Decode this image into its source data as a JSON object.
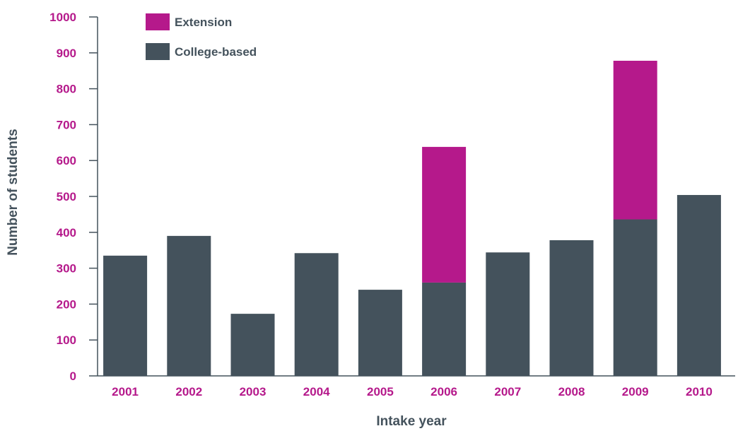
{
  "chart_data": {
    "type": "bar",
    "stacked": true,
    "categories": [
      "2001",
      "2002",
      "2003",
      "2004",
      "2005",
      "2006",
      "2007",
      "2008",
      "2009",
      "2010"
    ],
    "series": [
      {
        "name": "College-based",
        "values": [
          335,
          390,
          173,
          342,
          240,
          260,
          344,
          378,
          436,
          504
        ],
        "color": "#44525c"
      },
      {
        "name": "Extension",
        "values": [
          0,
          0,
          0,
          0,
          0,
          378,
          0,
          0,
          442,
          0
        ],
        "color": "#b5198b"
      }
    ],
    "xlabel": "Intake year",
    "ylabel": "Number of students",
    "ylim": [
      0,
      1000
    ],
    "yticks": [
      "0",
      "100",
      "200",
      "300",
      "400",
      "500",
      "600",
      "700",
      "800",
      "900",
      "1000"
    ],
    "grid": false,
    "legend_position": "top-left",
    "tick_label_color": "#b5198b",
    "axis_label_color": "#44525c"
  }
}
